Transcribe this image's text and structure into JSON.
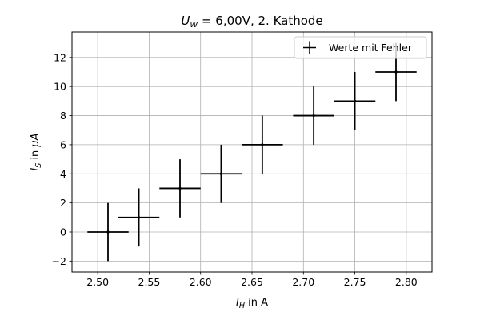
{
  "chart_data": {
    "type": "scatter",
    "title_var": "U",
    "title_sub": "W",
    "title_rest": " = 6,00V, 2. Kathode",
    "xlabel_var": "I",
    "xlabel_sub": "H",
    "xlabel_rest": " in A",
    "ylabel_var": "I",
    "ylabel_sub": "S",
    "ylabel_rest": " in ",
    "ylabel_unit": "μA",
    "xlim": [
      2.475,
      2.825
    ],
    "ylim": [
      -2.75,
      13.75
    ],
    "xticks": [
      2.5,
      2.55,
      2.6,
      2.65,
      2.7,
      2.75,
      2.8
    ],
    "xtick_labels": [
      "2.50",
      "2.55",
      "2.60",
      "2.65",
      "2.70",
      "2.75",
      "2.80"
    ],
    "yticks": [
      -2,
      0,
      2,
      4,
      6,
      8,
      10,
      12
    ],
    "ytick_labels": [
      "−2",
      "0",
      "2",
      "4",
      "6",
      "8",
      "10",
      "12"
    ],
    "grid": true,
    "legend_position": "top-right",
    "series": [
      {
        "name": "Werte mit Fehler",
        "color": "#000000",
        "points": [
          {
            "x": 2.51,
            "y": 0,
            "xerr": 0.02,
            "yerr": 2
          },
          {
            "x": 2.54,
            "y": 1,
            "xerr": 0.02,
            "yerr": 2
          },
          {
            "x": 2.58,
            "y": 3,
            "xerr": 0.02,
            "yerr": 2
          },
          {
            "x": 2.62,
            "y": 4,
            "xerr": 0.02,
            "yerr": 2
          },
          {
            "x": 2.66,
            "y": 6,
            "xerr": 0.02,
            "yerr": 2
          },
          {
            "x": 2.71,
            "y": 8,
            "xerr": 0.02,
            "yerr": 2
          },
          {
            "x": 2.75,
            "y": 9,
            "xerr": 0.02,
            "yerr": 2
          },
          {
            "x": 2.79,
            "y": 11,
            "xerr": 0.02,
            "yerr": 2
          }
        ]
      }
    ]
  }
}
